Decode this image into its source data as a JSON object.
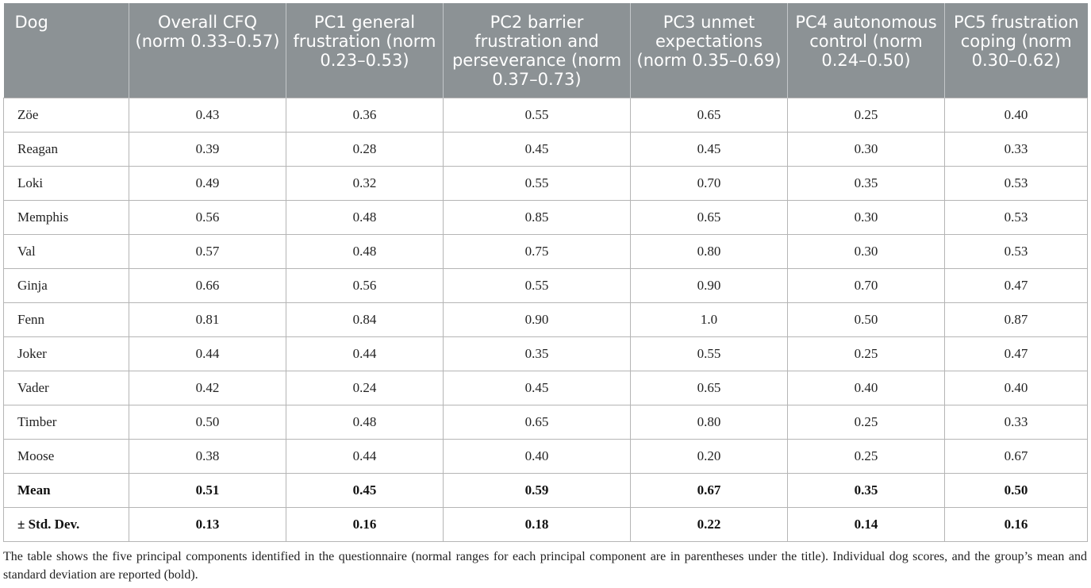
{
  "table": {
    "headers": [
      "Dog",
      "Overall CFQ (norm 0.33–0.57)",
      "PC1 general frustration (norm 0.23–0.53)",
      "PC2 barrier frustration and perseverance (norm 0.37–0.73)",
      "PC3 unmet expectations (norm 0.35–0.69)",
      "PC4 autonomous control (norm 0.24–0.50)",
      "PC5 frustration coping (norm 0.30–0.62)"
    ],
    "rows": [
      [
        "Zöe",
        "0.43",
        "0.36",
        "0.55",
        "0.65",
        "0.25",
        "0.40"
      ],
      [
        "Reagan",
        "0.39",
        "0.28",
        "0.45",
        "0.45",
        "0.30",
        "0.33"
      ],
      [
        "Loki",
        "0.49",
        "0.32",
        "0.55",
        "0.70",
        "0.35",
        "0.53"
      ],
      [
        "Memphis",
        "0.56",
        "0.48",
        "0.85",
        "0.65",
        "0.30",
        "0.53"
      ],
      [
        "Val",
        "0.57",
        "0.48",
        "0.75",
        "0.80",
        "0.30",
        "0.53"
      ],
      [
        "Ginja",
        "0.66",
        "0.56",
        "0.55",
        "0.90",
        "0.70",
        "0.47"
      ],
      [
        "Fenn",
        "0.81",
        "0.84",
        "0.90",
        "1.0",
        "0.50",
        "0.87"
      ],
      [
        "Joker",
        "0.44",
        "0.44",
        "0.35",
        "0.55",
        "0.25",
        "0.47"
      ],
      [
        "Vader",
        "0.42",
        "0.24",
        "0.45",
        "0.65",
        "0.40",
        "0.40"
      ],
      [
        "Timber",
        "0.50",
        "0.48",
        "0.65",
        "0.80",
        "0.25",
        "0.33"
      ],
      [
        "Moose",
        "0.38",
        "0.44",
        "0.40",
        "0.20",
        "0.25",
        "0.67"
      ]
    ],
    "summary_rows": [
      [
        "Mean",
        "0.51",
        "0.45",
        "0.59",
        "0.67",
        "0.35",
        "0.50"
      ],
      [
        "± Std. Dev.",
        "0.13",
        "0.16",
        "0.18",
        "0.22",
        "0.14",
        "0.16"
      ]
    ],
    "header_bg_color": "#8c9295"
  },
  "caption": "The table shows the five principal components identified in the questionnaire (normal ranges for each principal component are in parentheses under the title). Individual dog scores, and the group’s mean and standard deviation are reported (bold)."
}
